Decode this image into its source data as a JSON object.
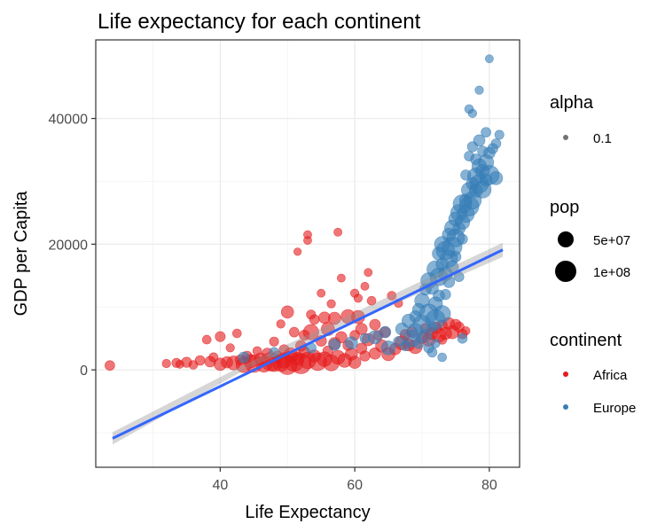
{
  "chart_data": {
    "type": "scatter",
    "title": "Life expectancy for each continent",
    "xlabel": "Life Expectancy",
    "ylabel": "GDP per Capita",
    "xlim": [
      21.5,
      84.5
    ],
    "ylim": [
      -15500,
      52500
    ],
    "x_ticks": [
      40,
      60,
      80
    ],
    "x_minor_ticks": [
      30,
      50,
      70
    ],
    "y_ticks": [
      0,
      20000,
      40000
    ],
    "y_minor_ticks": [
      -10000,
      10000,
      30000
    ],
    "grid": true,
    "legend_position": "right",
    "legend": {
      "alpha": {
        "title": "alpha",
        "items": [
          {
            "label": "0.1"
          }
        ]
      },
      "pop": {
        "title": "pop",
        "items": [
          {
            "label": "5e+07",
            "value": 50000000
          },
          {
            "label": "1e+08",
            "value": 100000000
          }
        ]
      },
      "continent": {
        "title": "continent",
        "items": [
          {
            "label": "Africa",
            "color": "#E41A1C"
          },
          {
            "label": "Europe",
            "color": "#377EB8"
          }
        ]
      }
    },
    "trend_line": {
      "color": "#3366FF",
      "start": [
        24,
        -10900
      ],
      "end": [
        82,
        19100
      ]
    },
    "series": [
      {
        "name": "Africa",
        "color": "#E41A1C",
        "points": [
          [
            23.6,
            700,
            8000000
          ],
          [
            32.0,
            1000,
            4000000
          ],
          [
            33.5,
            1100,
            6000000
          ],
          [
            34.0,
            900,
            3000000
          ],
          [
            35.0,
            1200,
            10000000
          ],
          [
            36.0,
            800,
            5000000
          ],
          [
            37.0,
            1500,
            8000000
          ],
          [
            38.0,
            4800,
            5000000
          ],
          [
            38.5,
            1300,
            12000000
          ],
          [
            39.0,
            2000,
            6000000
          ],
          [
            40.0,
            900,
            20000000
          ],
          [
            40.0,
            5300,
            9000000
          ],
          [
            41.0,
            1200,
            15000000
          ],
          [
            41.5,
            3500,
            4000000
          ],
          [
            42.0,
            1100,
            30000000
          ],
          [
            42.5,
            5800,
            5000000
          ],
          [
            43.0,
            1600,
            10000000
          ],
          [
            43.5,
            800,
            40000000
          ],
          [
            44.0,
            2200,
            8000000
          ],
          [
            44.5,
            1400,
            25000000
          ],
          [
            45.0,
            1000,
            60000000
          ],
          [
            45.5,
            3000,
            5000000
          ],
          [
            46.0,
            1700,
            20000000
          ],
          [
            46.5,
            900,
            45000000
          ],
          [
            47.0,
            2600,
            12000000
          ],
          [
            47.5,
            1300,
            70000000
          ],
          [
            48.0,
            4500,
            6000000
          ],
          [
            48.0,
            900,
            35000000
          ],
          [
            48.5,
            2000,
            18000000
          ],
          [
            49.0,
            1100,
            55000000
          ],
          [
            49.0,
            7300,
            4000000
          ],
          [
            49.5,
            3200,
            9000000
          ],
          [
            49.5,
            1500,
            40000000
          ],
          [
            50.0,
            9200,
            20000000
          ],
          [
            50.0,
            800,
            80000000
          ],
          [
            50.5,
            2400,
            30000000
          ],
          [
            51.0,
            1200,
            65000000
          ],
          [
            51.0,
            6000,
            8000000
          ],
          [
            51.5,
            18800,
            2000000
          ],
          [
            51.5,
            1800,
            25000000
          ],
          [
            52.0,
            3800,
            12000000
          ],
          [
            52.0,
            1000,
            90000000
          ],
          [
            52.5,
            2800,
            15000000
          ],
          [
            52.5,
            5500,
            10000000
          ],
          [
            53.0,
            1500,
            50000000
          ],
          [
            53.0,
            20600,
            3000000
          ],
          [
            53.0,
            21500,
            3000000
          ],
          [
            53.5,
            8800,
            6000000
          ],
          [
            53.5,
            6000,
            40000000
          ],
          [
            54.0,
            2200,
            20000000
          ],
          [
            54.0,
            8000,
            8000000
          ],
          [
            54.5,
            1300,
            60000000
          ],
          [
            55.0,
            4600,
            12000000
          ],
          [
            55.0,
            12200,
            3000000
          ],
          [
            55.5,
            8300,
            15000000
          ],
          [
            55.5,
            1700,
            35000000
          ],
          [
            56.0,
            6500,
            25000000
          ],
          [
            56.0,
            3000,
            10000000
          ],
          [
            56.5,
            1100,
            45000000
          ],
          [
            56.5,
            10500,
            4000000
          ],
          [
            57.0,
            4200,
            18000000
          ],
          [
            57.0,
            8200,
            20000000
          ],
          [
            57.5,
            21900,
            3000000
          ],
          [
            57.5,
            2000,
            30000000
          ],
          [
            58.0,
            14600,
            3000000
          ],
          [
            58.0,
            5200,
            14000000
          ],
          [
            58.5,
            1500,
            28000000
          ],
          [
            59.0,
            3900,
            10000000
          ],
          [
            59.0,
            8500,
            30000000
          ],
          [
            59.5,
            2500,
            20000000
          ],
          [
            60.0,
            12200,
            4000000
          ],
          [
            60.0,
            5500,
            8000000
          ],
          [
            60.0,
            1200,
            20000000
          ],
          [
            60.5,
            11400,
            4000000
          ],
          [
            60.5,
            8400,
            25000000
          ],
          [
            61.0,
            3400,
            12000000
          ],
          [
            61.0,
            6500,
            15000000
          ],
          [
            61.5,
            13300,
            3000000
          ],
          [
            61.5,
            2200,
            10000000
          ],
          [
            62.0,
            15500,
            3000000
          ],
          [
            62.0,
            4800,
            20000000
          ],
          [
            62.5,
            11000,
            5000000
          ],
          [
            63.0,
            7200,
            12000000
          ],
          [
            63.0,
            2600,
            15000000
          ],
          [
            63.5,
            5500,
            8000000
          ],
          [
            64.0,
            3800,
            20000000
          ],
          [
            64.5,
            6000,
            10000000
          ],
          [
            65.0,
            2500,
            25000000
          ],
          [
            65.5,
            11800,
            5000000
          ],
          [
            66.0,
            3300,
            15000000
          ],
          [
            66.5,
            10600,
            4000000
          ],
          [
            67.0,
            4300,
            30000000
          ],
          [
            67.5,
            5600,
            10000000
          ],
          [
            68.0,
            4000,
            20000000
          ],
          [
            68.5,
            6000,
            12000000
          ],
          [
            69.0,
            3700,
            30000000
          ],
          [
            70.0,
            5100,
            15000000
          ],
          [
            70.5,
            6600,
            10000000
          ],
          [
            71.0,
            4800,
            25000000
          ],
          [
            71.5,
            5800,
            20000000
          ],
          [
            72.0,
            6700,
            15000000
          ],
          [
            72.5,
            5500,
            30000000
          ],
          [
            73.0,
            7100,
            10000000
          ],
          [
            73.5,
            5800,
            20000000
          ],
          [
            74.0,
            7400,
            15000000
          ],
          [
            74.5,
            6000,
            25000000
          ],
          [
            75.0,
            7200,
            12000000
          ],
          [
            75.5,
            6800,
            10000000
          ],
          [
            76.0,
            5700,
            8000000
          ],
          [
            76.5,
            6200,
            4000000
          ],
          [
            73.0,
            4800,
            6000000
          ]
        ]
      },
      {
        "name": "Europe",
        "color": "#377EB8",
        "points": [
          [
            43.5,
            2000,
            12000000
          ],
          [
            48.0,
            2800,
            8000000
          ],
          [
            53.5,
            3500,
            10000000
          ],
          [
            57.0,
            4000,
            15000000
          ],
          [
            59.5,
            4300,
            20000000
          ],
          [
            61.5,
            5000,
            8000000
          ],
          [
            63.0,
            5200,
            25000000
          ],
          [
            64.5,
            6000,
            15000000
          ],
          [
            65.0,
            3500,
            30000000
          ],
          [
            66.5,
            4500,
            10000000
          ],
          [
            67.0,
            6500,
            20000000
          ],
          [
            67.5,
            3800,
            8000000
          ],
          [
            68.0,
            7800,
            25000000
          ],
          [
            68.5,
            5000,
            50000000
          ],
          [
            69.0,
            8500,
            15000000
          ],
          [
            69.0,
            6200,
            40000000
          ],
          [
            69.5,
            9600,
            20000000
          ],
          [
            69.5,
            4200,
            10000000
          ],
          [
            70.0,
            11000,
            35000000
          ],
          [
            70.0,
            7300,
            60000000
          ],
          [
            70.5,
            12800,
            15000000
          ],
          [
            70.5,
            5400,
            25000000
          ],
          [
            71.0,
            14200,
            45000000
          ],
          [
            71.0,
            9000,
            70000000
          ],
          [
            71.5,
            13000,
            20000000
          ],
          [
            71.5,
            6800,
            10000000
          ],
          [
            71.5,
            2800,
            8000000
          ],
          [
            72.0,
            16000,
            55000000
          ],
          [
            72.0,
            10500,
            30000000
          ],
          [
            72.0,
            8000,
            80000000
          ],
          [
            72.5,
            18500,
            25000000
          ],
          [
            72.5,
            14800,
            60000000
          ],
          [
            72.5,
            11800,
            15000000
          ],
          [
            73.0,
            20000,
            40000000
          ],
          [
            73.0,
            16800,
            20000000
          ],
          [
            73.0,
            8900,
            50000000
          ],
          [
            73.0,
            2000,
            5000000
          ],
          [
            73.5,
            19000,
            70000000
          ],
          [
            73.5,
            15300,
            30000000
          ],
          [
            73.5,
            12000,
            10000000
          ],
          [
            74.0,
            21500,
            25000000
          ],
          [
            74.0,
            17700,
            55000000
          ],
          [
            74.0,
            14000,
            15000000
          ],
          [
            74.5,
            22600,
            40000000
          ],
          [
            74.5,
            19600,
            80000000
          ],
          [
            74.5,
            16400,
            20000000
          ],
          [
            75.0,
            24000,
            30000000
          ],
          [
            75.0,
            21000,
            60000000
          ],
          [
            75.0,
            18000,
            12000000
          ],
          [
            75.5,
            25000,
            50000000
          ],
          [
            75.5,
            22500,
            20000000
          ],
          [
            75.5,
            14800,
            8000000
          ],
          [
            76.0,
            26400,
            70000000
          ],
          [
            76.0,
            23500,
            35000000
          ],
          [
            76.0,
            20800,
            10000000
          ],
          [
            76.0,
            5000,
            8000000
          ],
          [
            76.5,
            27000,
            20000000
          ],
          [
            76.5,
            24800,
            55000000
          ],
          [
            76.5,
            31000,
            10000000
          ],
          [
            77.0,
            28600,
            40000000
          ],
          [
            77.0,
            26000,
            80000000
          ],
          [
            77.0,
            34000,
            8000000
          ],
          [
            77.0,
            41500,
            5000000
          ],
          [
            77.5,
            29600,
            20000000
          ],
          [
            77.5,
            27000,
            60000000
          ],
          [
            77.5,
            35500,
            10000000
          ],
          [
            77.5,
            40800,
            4000000
          ],
          [
            78.0,
            30800,
            50000000
          ],
          [
            78.0,
            28500,
            25000000
          ],
          [
            78.0,
            33500,
            12000000
          ],
          [
            78.5,
            32400,
            35000000
          ],
          [
            78.5,
            29600,
            70000000
          ],
          [
            78.5,
            36500,
            15000000
          ],
          [
            78.5,
            44500,
            4000000
          ],
          [
            79.0,
            31600,
            30000000
          ],
          [
            79.0,
            28700,
            55000000
          ],
          [
            79.0,
            34800,
            10000000
          ],
          [
            79.5,
            33000,
            40000000
          ],
          [
            79.5,
            30200,
            20000000
          ],
          [
            79.5,
            37800,
            8000000
          ],
          [
            80.0,
            34500,
            15000000
          ],
          [
            80.0,
            31000,
            80000000
          ],
          [
            80.0,
            49500,
            3000000
          ],
          [
            80.5,
            35200,
            10000000
          ],
          [
            81.0,
            36000,
            8000000
          ],
          [
            81.0,
            30500,
            25000000
          ],
          [
            81.5,
            37400,
            6000000
          ],
          [
            71.0,
            3500,
            10000000
          ],
          [
            72.0,
            4200,
            5000000
          ]
        ]
      }
    ]
  }
}
